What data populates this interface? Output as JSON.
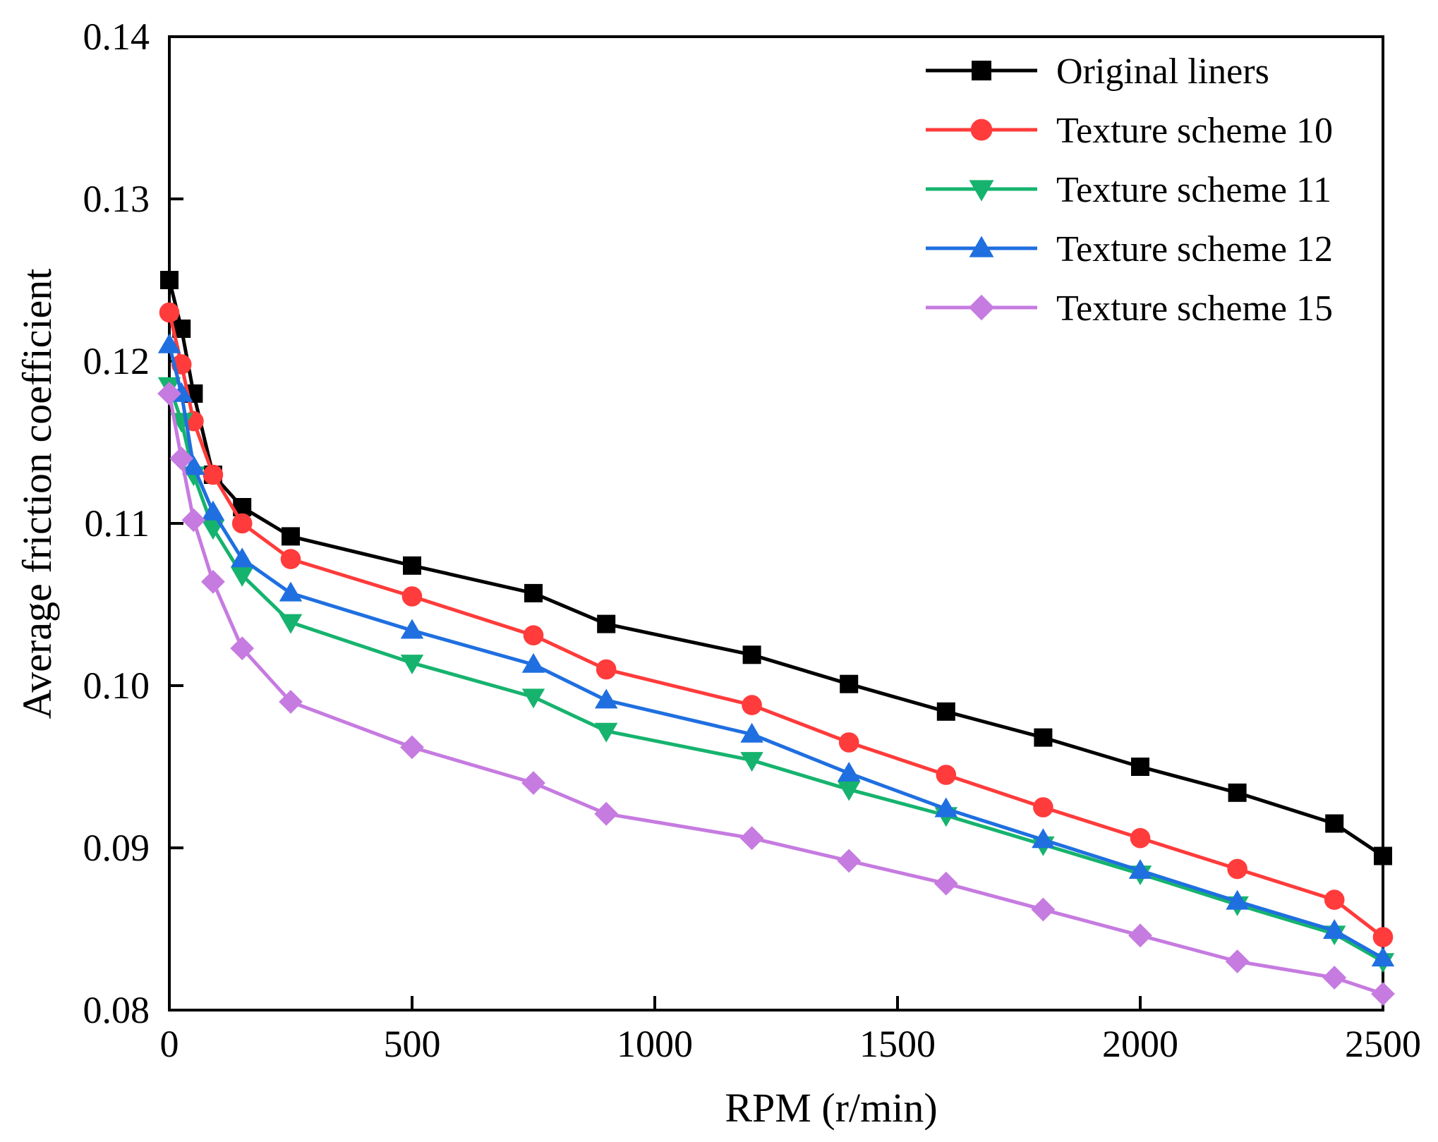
{
  "chart_data": {
    "type": "line",
    "title": "",
    "xlabel": "RPM (r/min)",
    "ylabel": "Average friction coefficient",
    "xlim": [
      0,
      2500
    ],
    "ylim": [
      0.08,
      0.14
    ],
    "xticks": [
      0,
      500,
      1000,
      1500,
      2000,
      2500
    ],
    "xtick_labels": [
      "0",
      "500",
      "1000",
      "1500",
      "2000",
      "2500"
    ],
    "yticks": [
      0.08,
      0.09,
      0.1,
      0.11,
      0.12,
      0.13,
      0.14
    ],
    "ytick_labels": [
      "0.08",
      "0.09",
      "0.10",
      "0.11",
      "0.12",
      "0.13",
      "0.14"
    ],
    "grid": false,
    "legend_position": "top-right",
    "x": [
      0,
      25,
      50,
      90,
      150,
      250,
      500,
      750,
      900,
      1200,
      1400,
      1600,
      1800,
      2000,
      2200,
      2400,
      2500
    ],
    "series": [
      {
        "name": "Original liners",
        "color": "#000000",
        "marker": "square",
        "values": [
          0.125,
          0.122,
          0.118,
          0.113,
          0.111,
          0.1092,
          0.1074,
          0.1057,
          0.1038,
          0.1019,
          0.1001,
          0.0984,
          0.0968,
          0.095,
          0.0934,
          0.0915,
          0.0895
        ]
      },
      {
        "name": "Texture scheme 10",
        "color": "#ff3b3b",
        "marker": "circle",
        "values": [
          0.123,
          0.1198,
          0.1163,
          0.113,
          0.11,
          0.1078,
          0.1055,
          0.1031,
          0.101,
          0.0988,
          0.0965,
          0.0945,
          0.0925,
          0.0906,
          0.0887,
          0.0868,
          0.0845
        ]
      },
      {
        "name": "Texture scheme 11",
        "color": "#16b36e",
        "marker": "triangle-down",
        "values": [
          0.1185,
          0.1163,
          0.113,
          0.1097,
          0.1068,
          0.1039,
          0.1014,
          0.0993,
          0.0972,
          0.0954,
          0.0936,
          0.092,
          0.0902,
          0.0884,
          0.0865,
          0.0847,
          0.083
        ]
      },
      {
        "name": "Texture scheme 12",
        "color": "#1f6fe0",
        "marker": "triangle-up",
        "values": [
          0.121,
          0.118,
          0.1135,
          0.1107,
          0.1078,
          0.1057,
          0.1034,
          0.1013,
          0.0991,
          0.097,
          0.0946,
          0.0924,
          0.0905,
          0.0886,
          0.0867,
          0.0849,
          0.0832
        ]
      },
      {
        "name": "Texture scheme 15",
        "color": "#c67be0",
        "marker": "diamond",
        "values": [
          0.118,
          0.114,
          0.1102,
          0.1064,
          0.1023,
          0.099,
          0.0962,
          0.094,
          0.0921,
          0.0906,
          0.0892,
          0.0878,
          0.0862,
          0.0846,
          0.083,
          0.082,
          0.081
        ]
      }
    ]
  }
}
